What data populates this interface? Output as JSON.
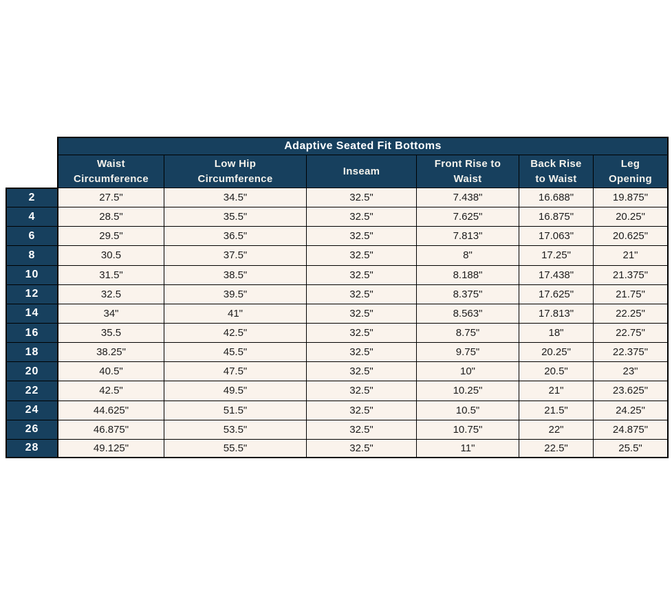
{
  "colors": {
    "header_bg": "#17405e",
    "row_bg": "#faf3ec",
    "border": "#000000",
    "header_text": "#ffffff",
    "cell_text": "#1c1c1c",
    "page_bg": "#ffffff"
  },
  "chart_data": {
    "type": "table",
    "title": "Adaptive Seated Fit Bottoms",
    "columns": [
      "Waist\nCircumference",
      "Low Hip\nCircumference",
      "Inseam",
      "Front Rise to\nWaist",
      "Back Rise\nto Waist",
      "Leg\nOpening"
    ],
    "rows": [
      {
        "size": "2",
        "values": [
          "27.5\"",
          "34.5\"",
          "32.5\"",
          "7.438\"",
          "16.688\"",
          "19.875\""
        ]
      },
      {
        "size": "4",
        "values": [
          "28.5\"",
          "35.5\"",
          "32.5\"",
          "7.625\"",
          "16.875\"",
          "20.25\""
        ]
      },
      {
        "size": "6",
        "values": [
          "29.5\"",
          "36.5\"",
          "32.5\"",
          "7.813\"",
          "17.063\"",
          "20.625\""
        ]
      },
      {
        "size": "8",
        "values": [
          "30.5",
          "37.5\"",
          "32.5\"",
          "8\"",
          "17.25\"",
          "21\""
        ]
      },
      {
        "size": "10",
        "values": [
          "31.5\"",
          "38.5\"",
          "32.5\"",
          "8.188\"",
          "17.438\"",
          "21.375\""
        ]
      },
      {
        "size": "12",
        "values": [
          "32.5",
          "39.5\"",
          "32.5\"",
          "8.375\"",
          "17.625\"",
          "21.75\""
        ]
      },
      {
        "size": "14",
        "values": [
          "34\"",
          "41\"",
          "32.5\"",
          "8.563\"",
          "17.813\"",
          "22.25\""
        ]
      },
      {
        "size": "16",
        "values": [
          "35.5",
          "42.5\"",
          "32.5\"",
          "8.75\"",
          "18\"",
          "22.75\""
        ]
      },
      {
        "size": "18",
        "values": [
          "38.25\"",
          "45.5\"",
          "32.5\"",
          "9.75\"",
          "20.25\"",
          "22.375\""
        ]
      },
      {
        "size": "20",
        "values": [
          "40.5\"",
          "47.5\"",
          "32.5\"",
          "10\"",
          "20.5\"",
          "23\""
        ]
      },
      {
        "size": "22",
        "values": [
          "42.5\"",
          "49.5\"",
          "32.5\"",
          "10.25\"",
          "21\"",
          "23.625\""
        ]
      },
      {
        "size": "24",
        "values": [
          "44.625\"",
          "51.5\"",
          "32.5\"",
          "10.5\"",
          "21.5\"",
          "24.25\""
        ]
      },
      {
        "size": "26",
        "values": [
          "46.875\"",
          "53.5\"",
          "32.5\"",
          "10.75\"",
          "22\"",
          "24.875\""
        ]
      },
      {
        "size": "28",
        "values": [
          "49.125\"",
          "55.5\"",
          "32.5\"",
          "11\"",
          "22.5\"",
          "25.5\""
        ]
      }
    ]
  }
}
